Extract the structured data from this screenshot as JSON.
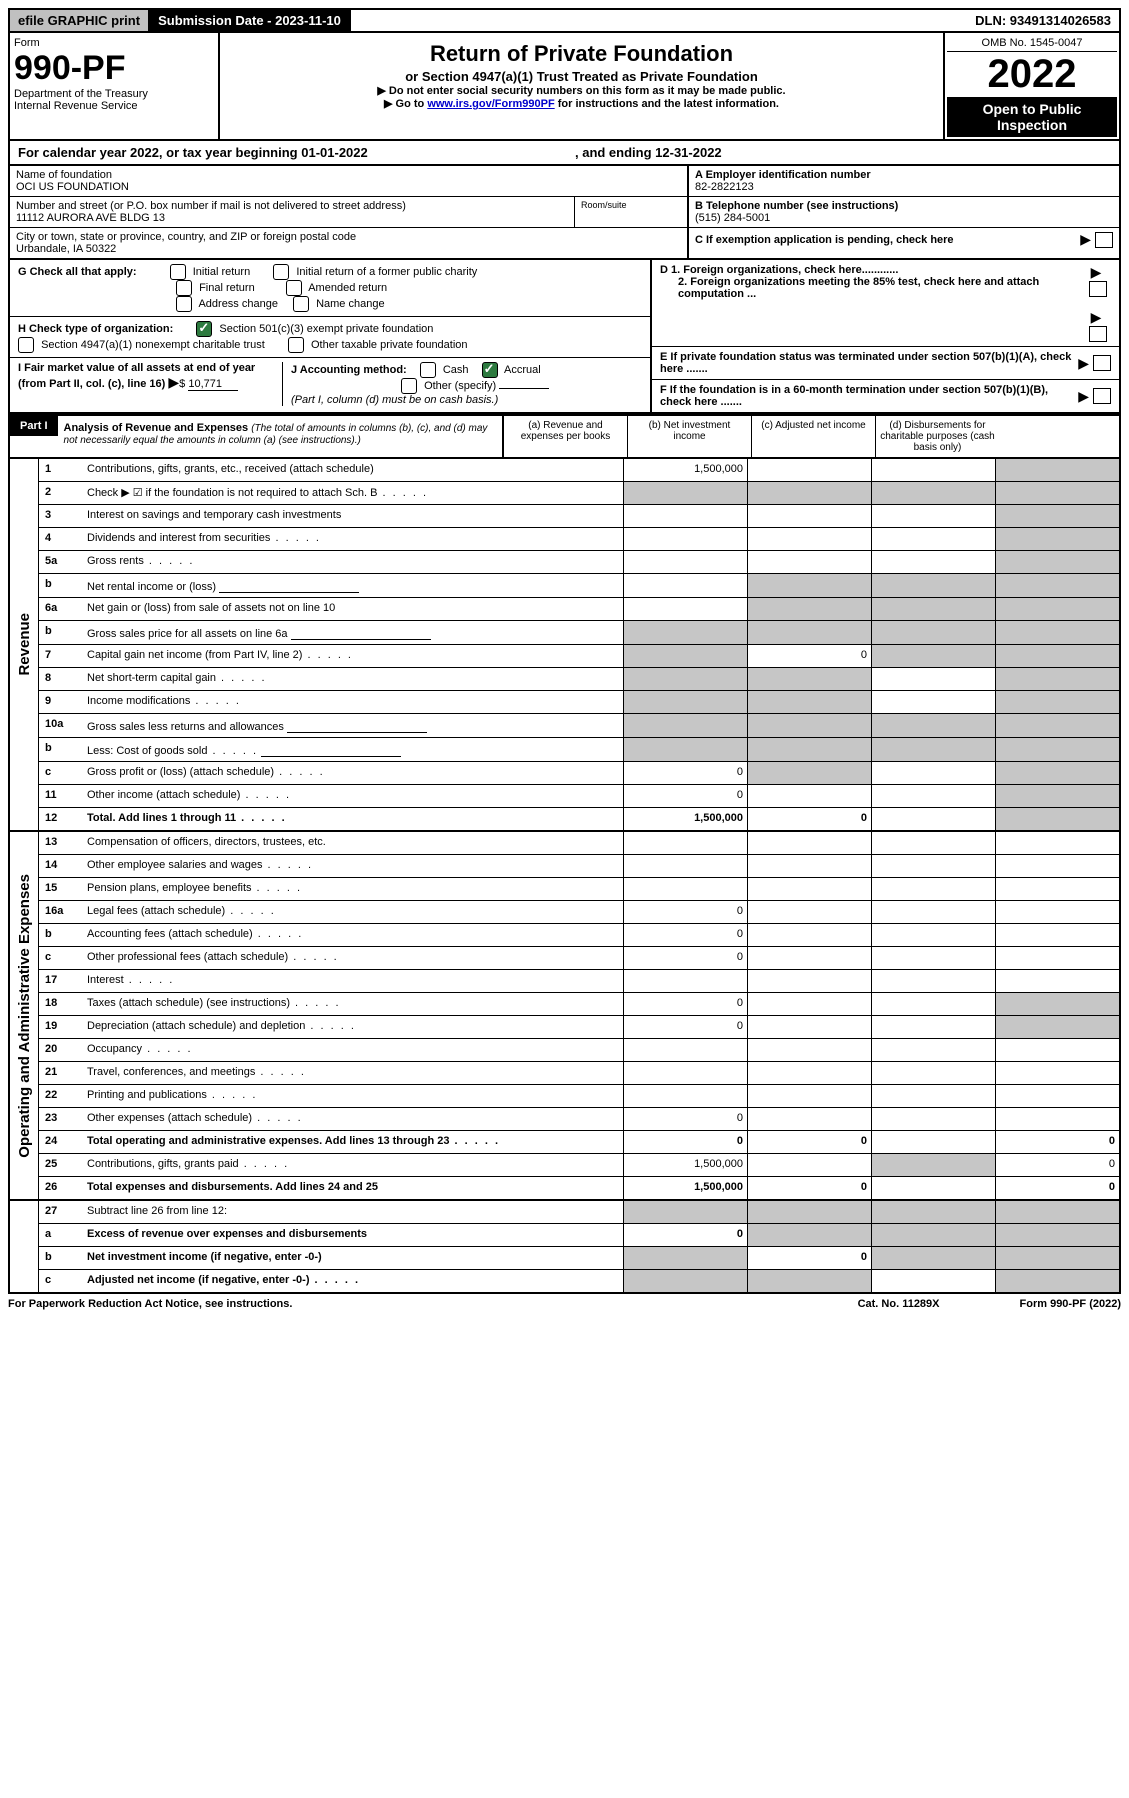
{
  "topbar": {
    "efile": "efile GRAPHIC print",
    "submission_date": "Submission Date - 2023-11-10",
    "dln": "DLN: 93491314026583"
  },
  "header": {
    "form_word": "Form",
    "form_number": "990-PF",
    "dept1": "Department of the Treasury",
    "dept2": "Internal Revenue Service",
    "title": "Return of Private Foundation",
    "subtitle": "or Section 4947(a)(1) Trust Treated as Private Foundation",
    "instr1": "▶ Do not enter social security numbers on this form as it may be made public.",
    "instr2_pre": "▶ Go to ",
    "instr2_link": "www.irs.gov/Form990PF",
    "instr2_post": " for instructions and the latest information.",
    "omb": "OMB No. 1545-0047",
    "year": "2022",
    "open": "Open to Public Inspection"
  },
  "yearline": {
    "text1": "For calendar year 2022, or tax year beginning ",
    "begin": "01-01-2022",
    "text2": ", and ending ",
    "end": "12-31-2022"
  },
  "info": {
    "name_label": "Name of foundation",
    "name": "OCI US FOUNDATION",
    "addr_label": "Number and street (or P.O. box number if mail is not delivered to street address)",
    "addr": "11112 AURORA AVE BLDG 13",
    "room_label": "Room/suite",
    "city_label": "City or town, state or province, country, and ZIP or foreign postal code",
    "city": "Urbandale, IA  50322",
    "ein_label": "A Employer identification number",
    "ein": "82-2822123",
    "phone_label": "B Telephone number (see instructions)",
    "phone": "(515) 284-5001",
    "c_label": "C If exemption application is pending, check here",
    "d1": "D 1. Foreign organizations, check here............",
    "d2": "2. Foreign organizations meeting the 85% test, check here and attach computation ...",
    "e": "E  If private foundation status was terminated under section 507(b)(1)(A), check here .......",
    "f": "F  If the foundation is in a 60-month termination under section 507(b)(1)(B), check here .......",
    "g_label": "G Check all that apply:",
    "g_opts": [
      "Initial return",
      "Initial return of a former public charity",
      "Final return",
      "Amended return",
      "Address change",
      "Name change"
    ],
    "h_label": "H Check type of organization:",
    "h_opts": [
      "Section 501(c)(3) exempt private foundation",
      "Section 4947(a)(1) nonexempt charitable trust",
      "Other taxable private foundation"
    ],
    "i_label": "I Fair market value of all assets at end of year (from Part II, col. (c), line 16)",
    "i_value": "10,771",
    "j_label": "J Accounting method:",
    "j_cash": "Cash",
    "j_accrual": "Accrual",
    "j_other": "Other (specify)",
    "j_note": "(Part I, column (d) must be on cash basis.)"
  },
  "part1": {
    "label": "Part I",
    "title": "Analysis of Revenue and Expenses",
    "note": "(The total of amounts in columns (b), (c), and (d) may not necessarily equal the amounts in column (a) (see instructions).)",
    "col_a": "(a) Revenue and expenses per books",
    "col_b": "(b) Net investment income",
    "col_c": "(c) Adjusted net income",
    "col_d": "(d) Disbursements for charitable purposes (cash basis only)",
    "rev_label": "Revenue",
    "exp_label": "Operating and Administrative Expenses",
    "rows_rev": [
      {
        "n": "1",
        "desc": "Contributions, gifts, grants, etc., received (attach schedule)",
        "a": "1,500,000",
        "d_shade": true
      },
      {
        "n": "2",
        "desc": "Check ▶ ☑ if the foundation is not required to attach Sch. B",
        "no_cols": true,
        "dots": true
      },
      {
        "n": "3",
        "desc": "Interest on savings and temporary cash investments",
        "d_shade": true
      },
      {
        "n": "4",
        "desc": "Dividends and interest from securities",
        "d_shade": true,
        "dots": true
      },
      {
        "n": "5a",
        "desc": "Gross rents",
        "d_shade": true,
        "dots": true
      },
      {
        "n": "b",
        "desc": "Net rental income or (loss)",
        "b_shade": true,
        "c_shade": true,
        "d_shade": true,
        "inner": true
      },
      {
        "n": "6a",
        "desc": "Net gain or (loss) from sale of assets not on line 10",
        "b_shade": true,
        "c_shade": true,
        "d_shade": true
      },
      {
        "n": "b",
        "desc": "Gross sales price for all assets on line 6a",
        "a_shade": true,
        "b_shade": true,
        "c_shade": true,
        "d_shade": true,
        "inner": true
      },
      {
        "n": "7",
        "desc": "Capital gain net income (from Part IV, line 2)",
        "dots": true,
        "a_shade": true,
        "b": "0",
        "c_shade": true,
        "d_shade": true
      },
      {
        "n": "8",
        "desc": "Net short-term capital gain",
        "dots": true,
        "a_shade": true,
        "b_shade": true,
        "d_shade": true
      },
      {
        "n": "9",
        "desc": "Income modifications",
        "dots": true,
        "a_shade": true,
        "b_shade": true,
        "d_shade": true
      },
      {
        "n": "10a",
        "desc": "Gross sales less returns and allowances",
        "inner": true,
        "a_shade": true,
        "b_shade": true,
        "c_shade": true,
        "d_shade": true
      },
      {
        "n": "b",
        "desc": "Less: Cost of goods sold",
        "dots": true,
        "inner": true,
        "a_shade": true,
        "b_shade": true,
        "c_shade": true,
        "d_shade": true
      },
      {
        "n": "c",
        "desc": "Gross profit or (loss) (attach schedule)",
        "dots": true,
        "a": "0",
        "b_shade": true,
        "d_shade": true
      },
      {
        "n": "11",
        "desc": "Other income (attach schedule)",
        "dots": true,
        "a": "0",
        "d_shade": true
      },
      {
        "n": "12",
        "desc": "Total. Add lines 1 through 11",
        "bold": true,
        "dots": true,
        "a": "1,500,000",
        "b": "0",
        "d_shade": true
      }
    ],
    "rows_exp": [
      {
        "n": "13",
        "desc": "Compensation of officers, directors, trustees, etc."
      },
      {
        "n": "14",
        "desc": "Other employee salaries and wages",
        "dots": true
      },
      {
        "n": "15",
        "desc": "Pension plans, employee benefits",
        "dots": true
      },
      {
        "n": "16a",
        "desc": "Legal fees (attach schedule)",
        "dots": true,
        "a": "0"
      },
      {
        "n": "b",
        "desc": "Accounting fees (attach schedule)",
        "dots": true,
        "a": "0"
      },
      {
        "n": "c",
        "desc": "Other professional fees (attach schedule)",
        "dots": true,
        "a": "0"
      },
      {
        "n": "17",
        "desc": "Interest",
        "dots": true
      },
      {
        "n": "18",
        "desc": "Taxes (attach schedule) (see instructions)",
        "dots": true,
        "a": "0",
        "d_shade": true
      },
      {
        "n": "19",
        "desc": "Depreciation (attach schedule) and depletion",
        "dots": true,
        "a": "0",
        "d_shade": true
      },
      {
        "n": "20",
        "desc": "Occupancy",
        "dots": true
      },
      {
        "n": "21",
        "desc": "Travel, conferences, and meetings",
        "dots": true
      },
      {
        "n": "22",
        "desc": "Printing and publications",
        "dots": true
      },
      {
        "n": "23",
        "desc": "Other expenses (attach schedule)",
        "dots": true,
        "a": "0"
      },
      {
        "n": "24",
        "desc": "Total operating and administrative expenses. Add lines 13 through 23",
        "bold": true,
        "dots": true,
        "a": "0",
        "b": "0",
        "d": "0"
      },
      {
        "n": "25",
        "desc": "Contributions, gifts, grants paid",
        "dots": true,
        "a": "1,500,000",
        "c_shade": true,
        "d": "0"
      },
      {
        "n": "26",
        "desc": "Total expenses and disbursements. Add lines 24 and 25",
        "bold": true,
        "a": "1,500,000",
        "b": "0",
        "d": "0"
      }
    ],
    "rows_bottom": [
      {
        "n": "27",
        "desc": "Subtract line 26 from line 12:",
        "a_shade": true,
        "b_shade": true,
        "c_shade": true,
        "d_shade": true
      },
      {
        "n": "a",
        "desc": "Excess of revenue over expenses and disbursements",
        "bold": true,
        "a": "0",
        "b_shade": true,
        "c_shade": true,
        "d_shade": true
      },
      {
        "n": "b",
        "desc": "Net investment income (if negative, enter -0-)",
        "bold": true,
        "a_shade": true,
        "b": "0",
        "c_shade": true,
        "d_shade": true
      },
      {
        "n": "c",
        "desc": "Adjusted net income (if negative, enter -0-)",
        "bold": true,
        "dots": true,
        "a_shade": true,
        "b_shade": true,
        "d_shade": true
      }
    ]
  },
  "footer": {
    "paperwork": "For Paperwork Reduction Act Notice, see instructions.",
    "cat": "Cat. No. 11289X",
    "form": "Form 990-PF (2022)"
  }
}
